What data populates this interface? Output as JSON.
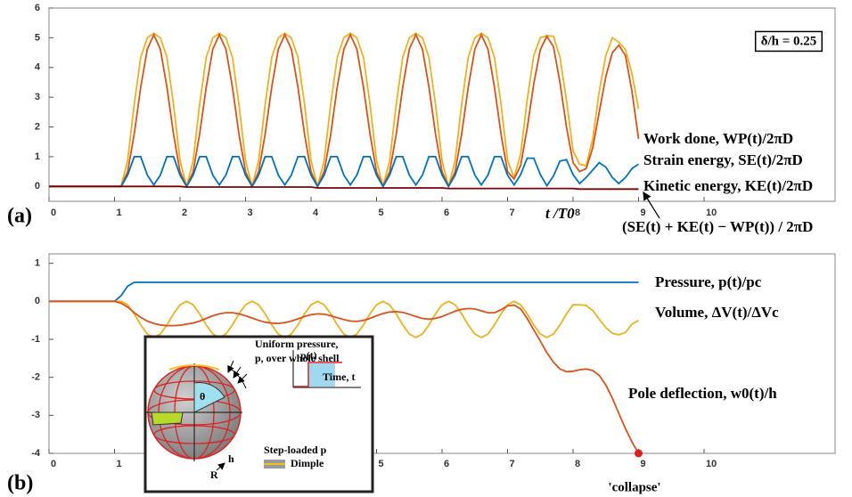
{
  "chart_data": [
    {
      "type": "line",
      "panel_label": "(a)",
      "xlabel": "t /T0",
      "annotations": [
        "δ/h = 0.25"
      ],
      "x": [
        0,
        1,
        1.1,
        1.2,
        1.3,
        1.4,
        1.5,
        1.6,
        1.7,
        1.8,
        1.9,
        2,
        2.1,
        2.2,
        2.3,
        2.4,
        2.5,
        2.6,
        2.7,
        2.8,
        2.9,
        3,
        3.1,
        3.2,
        3.3,
        3.4,
        3.5,
        3.6,
        3.7,
        3.8,
        3.9,
        4,
        4.1,
        4.2,
        4.3,
        4.4,
        4.5,
        4.6,
        4.7,
        4.8,
        4.9,
        5,
        5.1,
        5.2,
        5.3,
        5.4,
        5.5,
        5.6,
        5.7,
        5.8,
        5.9,
        6,
        6.1,
        6.2,
        6.3,
        6.4,
        6.5,
        6.6,
        6.7,
        6.8,
        6.9,
        7,
        7.1,
        7.2,
        7.3,
        7.4,
        7.5,
        7.6,
        7.7,
        7.8,
        7.9,
        8,
        8.1,
        8.2,
        8.3,
        8.4,
        8.5,
        8.6,
        8.7,
        8.8,
        8.9,
        9
      ],
      "xlim": [
        0,
        12
      ],
      "xticks": [
        0,
        1,
        2,
        3,
        4,
        5,
        6,
        7,
        8,
        9,
        10
      ],
      "ylim": [
        -0.5,
        6
      ],
      "yticks": [
        0,
        1,
        2,
        3,
        4,
        5,
        6
      ],
      "series": [
        {
          "name": "Work done, WP(t)/2πD",
          "color": "#edb120",
          "values": [
            0,
            0,
            0,
            0.87,
            2.76,
            4.34,
            5.0,
            5.15,
            5.0,
            4.34,
            2.76,
            0.87,
            0,
            0.87,
            2.76,
            4.34,
            5.0,
            5.15,
            5.0,
            4.34,
            2.76,
            0.87,
            0,
            0.87,
            2.76,
            4.34,
            5.0,
            5.15,
            5.0,
            4.34,
            2.76,
            0.87,
            0,
            0.87,
            2.76,
            4.34,
            5.0,
            5.15,
            5.0,
            4.34,
            2.76,
            0.87,
            0,
            0.87,
            2.76,
            4.34,
            5.0,
            5.15,
            5.0,
            4.34,
            2.76,
            0.87,
            0,
            0.87,
            2.76,
            4.34,
            5.0,
            5.15,
            5.0,
            4.34,
            2.76,
            0.87,
            0.3,
            1.1,
            2.9,
            4.4,
            5.0,
            5.07,
            5.05,
            4.35,
            2.9,
            1.2,
            0.75,
            0.7,
            1.6,
            3.2,
            4.4,
            5.0,
            4.85,
            4.6,
            3.8,
            2.6
          ]
        },
        {
          "name": "Strain energy, SE(t)/2πD",
          "color": "#d95319",
          "values": [
            0,
            0,
            0,
            0.49,
            1.76,
            3.34,
            4.62,
            5.1,
            4.62,
            3.34,
            1.76,
            0.49,
            0,
            0.49,
            1.76,
            3.34,
            4.62,
            5.1,
            4.62,
            3.34,
            1.76,
            0.49,
            0,
            0.49,
            1.76,
            3.34,
            4.62,
            5.1,
            4.62,
            3.34,
            1.76,
            0.49,
            0,
            0.49,
            1.76,
            3.34,
            4.62,
            5.1,
            4.62,
            3.34,
            1.76,
            0.49,
            0,
            0.49,
            1.76,
            3.34,
            4.62,
            5.1,
            4.62,
            3.34,
            1.76,
            0.49,
            0,
            0.49,
            1.76,
            3.34,
            4.62,
            5.1,
            4.62,
            3.34,
            1.76,
            0.49,
            0.25,
            0.7,
            1.95,
            3.45,
            4.6,
            5.05,
            4.7,
            3.5,
            2.0,
            0.8,
            0.5,
            0.6,
            1.3,
            2.5,
            3.7,
            4.5,
            4.75,
            4.4,
            3.2,
            1.6
          ]
        },
        {
          "name": "Kinetic energy, KE(t)/2πD",
          "color": "#0072bd",
          "values": [
            0,
            0,
            0,
            0.38,
            1.0,
            1.0,
            0.38,
            0.05,
            0.38,
            1.0,
            1.0,
            0.38,
            0,
            0.38,
            1.0,
            1.0,
            0.38,
            0.05,
            0.38,
            1.0,
            1.0,
            0.38,
            0,
            0.38,
            1.0,
            1.0,
            0.38,
            0.05,
            0.38,
            1.0,
            1.0,
            0.38,
            0,
            0.38,
            1.0,
            1.0,
            0.38,
            0.05,
            0.38,
            1.0,
            1.0,
            0.38,
            0,
            0.38,
            1.0,
            1.0,
            0.38,
            0.05,
            0.38,
            1.0,
            1.0,
            0.38,
            0,
            0.38,
            1.0,
            1.0,
            0.38,
            0.05,
            0.38,
            1.0,
            1.0,
            0.38,
            0.05,
            0.4,
            0.95,
            0.95,
            0.4,
            0.02,
            0.35,
            0.85,
            0.9,
            0.4,
            0.1,
            0.3,
            0.55,
            0.8,
            0.65,
            0.3,
            0.1,
            0.3,
            0.6,
            0.75
          ]
        },
        {
          "name": "(SE(t) + KE(t) − WP(t)) / 2πD",
          "color": "#7e0000",
          "values": [
            0,
            0,
            0,
            0,
            0,
            0,
            0,
            0,
            0,
            0,
            0,
            0,
            -0.02,
            -0.02,
            -0.02,
            -0.02,
            -0.02,
            -0.02,
            -0.02,
            -0.02,
            -0.02,
            -0.02,
            -0.02,
            -0.02,
            -0.02,
            -0.02,
            -0.02,
            -0.02,
            -0.02,
            -0.02,
            -0.02,
            -0.02,
            -0.05,
            -0.05,
            -0.05,
            -0.05,
            -0.05,
            -0.05,
            -0.05,
            -0.05,
            -0.05,
            -0.05,
            -0.05,
            -0.05,
            -0.05,
            -0.05,
            -0.05,
            -0.05,
            -0.05,
            -0.05,
            -0.05,
            -0.05,
            -0.07,
            -0.07,
            -0.07,
            -0.07,
            -0.07,
            -0.07,
            -0.07,
            -0.07,
            -0.07,
            -0.07,
            -0.07,
            -0.07,
            -0.07,
            -0.07,
            -0.07,
            -0.07,
            -0.07,
            -0.07,
            -0.07,
            -0.07,
            -0.09,
            -0.09,
            -0.09,
            -0.09,
            -0.09,
            -0.09,
            -0.09,
            -0.09,
            -0.09,
            -0.09
          ]
        }
      ]
    },
    {
      "type": "line",
      "panel_label": "(b)",
      "annotations": [
        "'collapse'"
      ],
      "x": [
        0,
        1,
        1.1,
        1.2,
        1.3,
        1.4,
        1.5,
        1.6,
        1.7,
        1.8,
        1.9,
        2,
        2.1,
        2.2,
        2.3,
        2.4,
        2.5,
        2.6,
        2.7,
        2.8,
        2.9,
        3,
        3.1,
        3.2,
        3.3,
        3.4,
        3.5,
        3.6,
        3.7,
        3.8,
        3.9,
        4,
        4.1,
        4.2,
        4.3,
        4.4,
        4.5,
        4.6,
        4.7,
        4.8,
        4.9,
        5,
        5.1,
        5.2,
        5.3,
        5.4,
        5.5,
        5.6,
        5.7,
        5.8,
        5.9,
        6,
        6.1,
        6.2,
        6.3,
        6.4,
        6.5,
        6.6,
        6.7,
        6.8,
        6.9,
        7,
        7.1,
        7.2,
        7.3,
        7.4,
        7.5,
        7.6,
        7.7,
        7.8,
        7.9,
        8,
        8.1,
        8.2,
        8.3,
        8.4,
        8.5,
        8.6,
        8.7,
        8.8,
        8.9,
        9
      ],
      "xlim": [
        0,
        12
      ],
      "xticks": [
        0,
        1,
        2,
        3,
        4,
        5,
        6,
        7,
        8,
        9,
        10
      ],
      "ylim": [
        -4,
        1.25
      ],
      "yticks": [
        -4,
        -3,
        -2,
        -1,
        0,
        1
      ],
      "series": [
        {
          "name": "Pressure, p(t)/pc",
          "color": "#0072bd",
          "values": [
            0,
            0,
            0.15,
            0.4,
            0.5,
            0.5,
            0.5,
            0.5,
            0.5,
            0.5,
            0.5,
            0.5,
            0.5,
            0.5,
            0.5,
            0.5,
            0.5,
            0.5,
            0.5,
            0.5,
            0.5,
            0.5,
            0.5,
            0.5,
            0.5,
            0.5,
            0.5,
            0.5,
            0.5,
            0.5,
            0.5,
            0.5,
            0.5,
            0.5,
            0.5,
            0.5,
            0.5,
            0.5,
            0.5,
            0.5,
            0.5,
            0.5,
            0.5,
            0.5,
            0.5,
            0.5,
            0.5,
            0.5,
            0.5,
            0.5,
            0.5,
            0.5,
            0.5,
            0.5,
            0.5,
            0.5,
            0.5,
            0.5,
            0.5,
            0.5,
            0.5,
            0.5,
            0.5,
            0.5,
            0.5,
            0.5,
            0.5,
            0.5,
            0.5,
            0.5,
            0.5,
            0.5,
            0.5,
            0.5,
            0.5,
            0.5,
            0.5,
            0.5,
            0.5,
            0.5,
            0.5,
            0.5
          ]
        },
        {
          "name": "Volume, ΔV(t)/ΔVc",
          "color": "#edb120",
          "values": [
            0,
            0,
            0,
            -0.09,
            -0.33,
            -0.62,
            -0.86,
            -0.95,
            -0.86,
            -0.62,
            -0.33,
            -0.09,
            0,
            -0.09,
            -0.33,
            -0.62,
            -0.86,
            -0.95,
            -0.86,
            -0.62,
            -0.33,
            -0.09,
            0,
            -0.09,
            -0.33,
            -0.62,
            -0.86,
            -0.95,
            -0.86,
            -0.62,
            -0.33,
            -0.09,
            0,
            -0.09,
            -0.33,
            -0.62,
            -0.86,
            -0.95,
            -0.86,
            -0.62,
            -0.33,
            -0.09,
            0,
            -0.09,
            -0.33,
            -0.62,
            -0.86,
            -0.95,
            -0.86,
            -0.62,
            -0.33,
            -0.09,
            0,
            -0.09,
            -0.33,
            -0.62,
            -0.86,
            -0.95,
            -0.86,
            -0.62,
            -0.33,
            -0.09,
            0,
            -0.09,
            -0.33,
            -0.62,
            -0.86,
            -0.95,
            -0.86,
            -0.62,
            -0.33,
            -0.09,
            -0.09,
            -0.11,
            -0.24,
            -0.47,
            -0.69,
            -0.84,
            -0.88,
            -0.82,
            -0.6,
            -0.5
          ]
        },
        {
          "name": "Pole deflection, w0(t)/h",
          "color": "#d95319",
          "values": [
            0,
            0,
            -0.05,
            -0.15,
            -0.3,
            -0.42,
            -0.52,
            -0.58,
            -0.62,
            -0.64,
            -0.64,
            -0.63,
            -0.6,
            -0.57,
            -0.52,
            -0.45,
            -0.38,
            -0.33,
            -0.3,
            -0.3,
            -0.33,
            -0.38,
            -0.44,
            -0.5,
            -0.55,
            -0.57,
            -0.58,
            -0.56,
            -0.52,
            -0.46,
            -0.4,
            -0.35,
            -0.33,
            -0.34,
            -0.38,
            -0.43,
            -0.48,
            -0.52,
            -0.53,
            -0.5,
            -0.45,
            -0.38,
            -0.32,
            -0.28,
            -0.27,
            -0.29,
            -0.34,
            -0.4,
            -0.45,
            -0.47,
            -0.45,
            -0.4,
            -0.33,
            -0.26,
            -0.21,
            -0.19,
            -0.2,
            -0.25,
            -0.3,
            -0.3,
            -0.22,
            -0.12,
            -0.1,
            -0.2,
            -0.45,
            -0.75,
            -1.05,
            -1.35,
            -1.6,
            -1.78,
            -1.85,
            -1.84,
            -1.8,
            -1.78,
            -1.82,
            -1.95,
            -2.2,
            -2.55,
            -2.95,
            -3.35,
            -3.7,
            -4.0
          ]
        }
      ],
      "inset": {
        "pressure_note": [
          "Uniform pressure,",
          "p, over whole shell"
        ],
        "load_axis": "p(t)",
        "time_axis": "Time, t",
        "load_note": "Step-loaded p",
        "legend": "Dimple",
        "angle": "θ",
        "radius": "R",
        "thickness": "h"
      }
    }
  ]
}
